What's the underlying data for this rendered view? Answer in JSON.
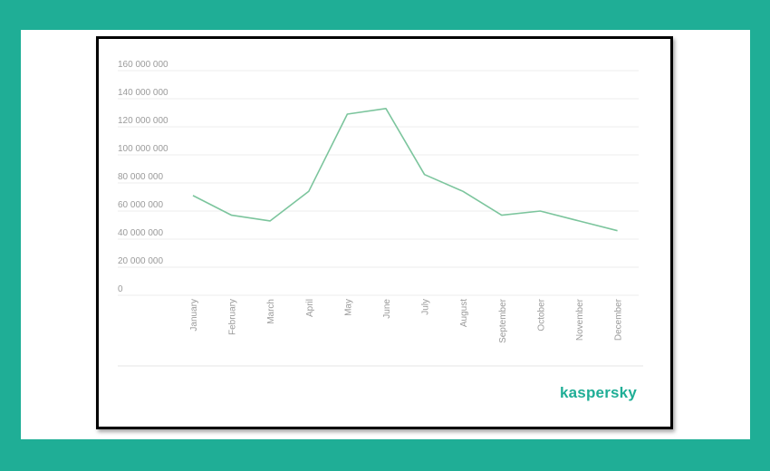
{
  "brand": {
    "logo_text": "kaspersky",
    "accent_color": "#1fae96"
  },
  "colors": {
    "background": "#1fae96",
    "line": "#7cc59d",
    "grid": "#eeeeee",
    "tick_text": "#9a9a9a"
  },
  "chart_data": {
    "type": "line",
    "title": "",
    "xlabel": "",
    "ylabel": "",
    "categories": [
      "January",
      "February",
      "March",
      "April",
      "May",
      "June",
      "July",
      "August",
      "September",
      "October",
      "November",
      "December"
    ],
    "series": [
      {
        "values": [
          71000000,
          57000000,
          53000000,
          74000000,
          129000000,
          133000000,
          86000000,
          74000000,
          57000000,
          60000000,
          53000000,
          46000000
        ]
      }
    ],
    "yticks": [
      "0",
      "20 000 000",
      "40 000 000",
      "60 000 000",
      "80 000 000",
      "100 000 000",
      "120 000 000",
      "140 000 000",
      "160 000 000"
    ],
    "ylim": [
      0,
      160000000
    ],
    "grid": true,
    "legend": "none"
  }
}
